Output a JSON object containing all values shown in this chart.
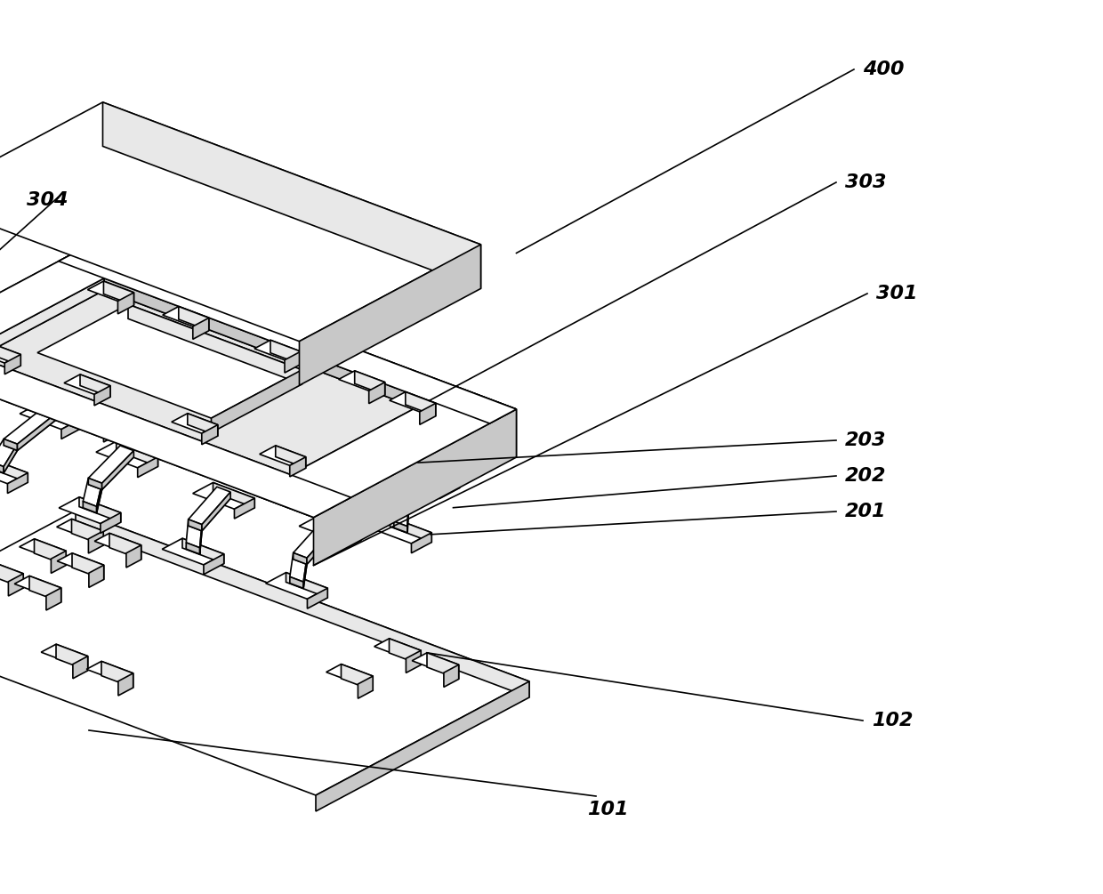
{
  "bg_color": "#ffffff",
  "line_color": "#000000",
  "fill_white": "#ffffff",
  "fill_light": "#e8e8e8",
  "fill_mid": "#c8c8c8",
  "fill_dark": "#a0a0a0",
  "lw": 1.2,
  "label_fontsize": 16,
  "label_style": "italic",
  "label_weight": "bold"
}
